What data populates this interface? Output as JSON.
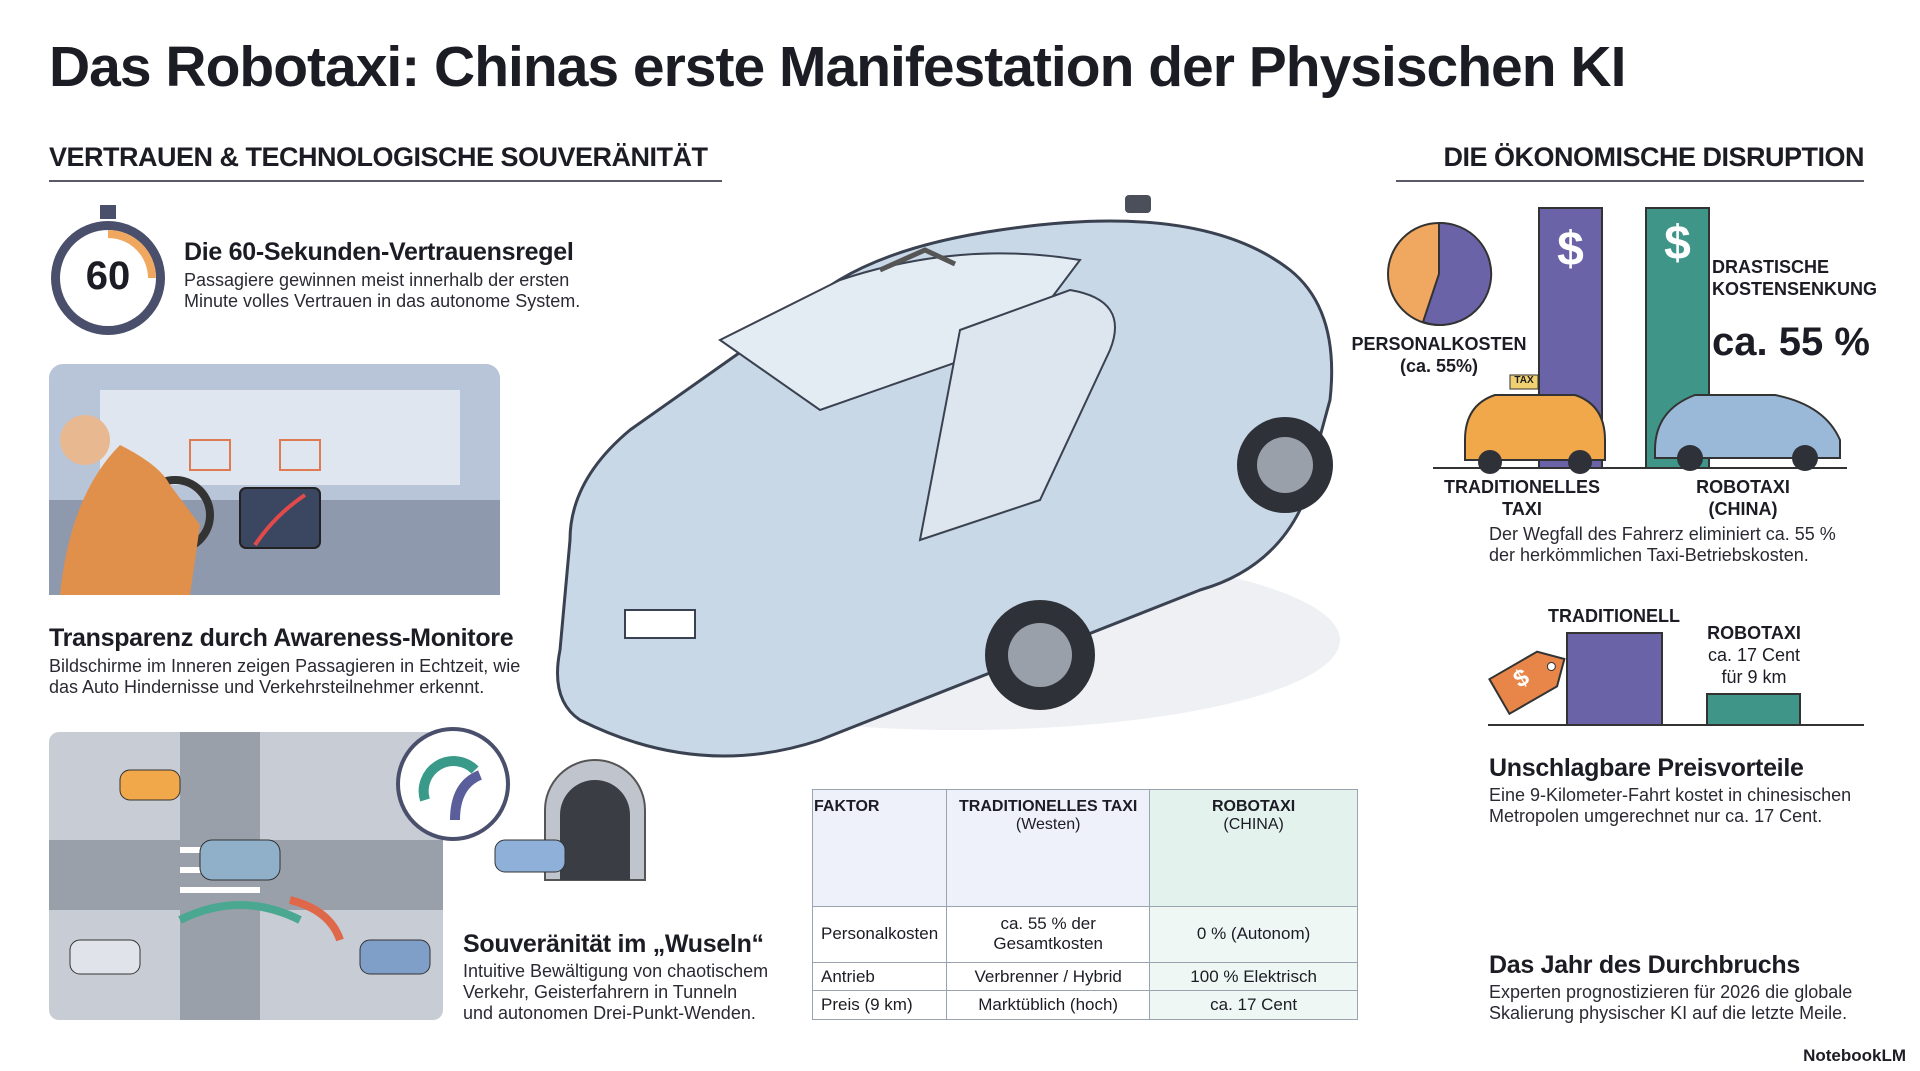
{
  "header": {
    "title": "Das Robotaxi: Chinas erste Manifestation der Physischen KI"
  },
  "left_section": {
    "heading": "VERTRAUEN & TECHNOLOGISCHE SOUVERÄNITÄT",
    "stopwatch_label": "60",
    "items": [
      {
        "title": "Die 60-Sekunden-Vertrauensregel",
        "lines": [
          "Passagiere gewinnen meist innerhalb der ersten",
          "Minute volles Vertrauen in das autonome System."
        ]
      },
      {
        "title": "Transparenz durch Awareness-Monitore",
        "lines": [
          "Bildschirme im Inneren zeigen Passagieren in Echtzeit, wie",
          "das Auto Hindernisse und Verkehrsteilnehmer erkennt."
        ]
      },
      {
        "title": "Souveränität im „Wuseln“",
        "lines": [
          "Intuitive Bewältigung von chaotischem",
          "Verkehr, Geisterfahrern in Tunneln",
          "und autonomen Drei-Punkt-Wenden."
        ]
      }
    ]
  },
  "right_section": {
    "heading": "DIE ÖKONOMISCHE DISRUPTION",
    "currency_symbol": "$",
    "taxi_sign": "TAX",
    "pie_label": [
      "PERSONALKOSTEN",
      "(ca. 55%)"
    ],
    "callout": [
      "DRASTISCHE",
      "KOSTENSENKUNG"
    ],
    "callout_value": "ca. 55 %",
    "bar_labels": [
      [
        "TRADITIONELLES",
        "TAXI"
      ],
      [
        "ROBOTAXI",
        "(CHINA)"
      ]
    ],
    "note": [
      "Der Wegfall des Fahrerz eliminiert ca. 55 %",
      "der herkömmlichen Taxi-Betriebskosten."
    ],
    "price_labels": {
      "traditional": "TRADITIONELL",
      "robotaxi": [
        "ROBOTAXI",
        "ca. 17 Cent",
        "für 9 km"
      ]
    },
    "items": [
      {
        "title": "Unschlagbare Preisvorteile",
        "lines": [
          "Eine 9-Kilometer-Fahrt kostet in chinesischen",
          "Metropolen umgerechnet nur ca. 17 Cent."
        ]
      },
      {
        "title": "Das Jahr des Durchbruchs",
        "lines": [
          "Experten prognostizieren für 2026 die globale",
          "Skalierung physischer KI auf die letzte Meile."
        ]
      }
    ]
  },
  "table": {
    "header": [
      [
        "FAKTOR"
      ],
      [
        "TRADITIONELLES TAXI",
        "(Westen)"
      ],
      [
        "ROBOTAXI",
        "(CHINA)"
      ]
    ],
    "rows": [
      [
        "Personalkosten",
        "ca. 55 % der Gesamtkosten",
        "0 % (Autonom)"
      ],
      [
        "Antrieb",
        "Verbrenner / Hybrid",
        "100 % Elektrisch"
      ],
      [
        "Preis (9 km)",
        "Marktüblich (hoch)",
        "ca. 17 Cent"
      ]
    ]
  },
  "footer": {
    "brand": "NotebookLM"
  }
}
